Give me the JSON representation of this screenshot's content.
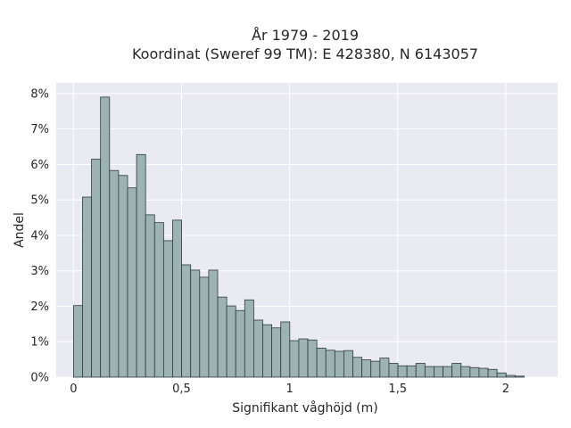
{
  "chart_data": {
    "type": "bar",
    "title_lines": [
      "År 1979 - 2019",
      "Koordinat (Sweref 99 TM): E 428380, N 6143057"
    ],
    "xlabel": "Signifikant våghöjd (m)",
    "ylabel": "Andel",
    "xlim": [
      -0.08,
      2.24
    ],
    "ylim": [
      0,
      8.3
    ],
    "x_ticks": [
      0,
      0.5,
      1,
      1.5,
      2
    ],
    "x_tick_labels": [
      "0",
      "0,5",
      "1",
      "1,5",
      "2"
    ],
    "y_ticks": [
      0,
      1,
      2,
      3,
      4,
      5,
      6,
      7,
      8
    ],
    "y_tick_labels": [
      "0%",
      "1%",
      "2%",
      "3%",
      "4%",
      "5%",
      "6%",
      "7%",
      "8%"
    ],
    "bin_width": 0.0417,
    "bin_start": 0,
    "values": [
      2.02,
      5.08,
      6.15,
      7.9,
      5.83,
      5.69,
      5.34,
      6.28,
      4.58,
      4.36,
      3.85,
      4.43,
      3.17,
      3.02,
      2.82,
      3.02,
      2.26,
      2.01,
      1.88,
      2.18,
      1.61,
      1.48,
      1.39,
      1.56,
      1.03,
      1.08,
      1.05,
      0.82,
      0.76,
      0.73,
      0.75,
      0.56,
      0.49,
      0.45,
      0.54,
      0.39,
      0.32,
      0.32,
      0.39,
      0.3,
      0.3,
      0.3,
      0.39,
      0.3,
      0.27,
      0.25,
      0.22,
      0.12,
      0.05,
      0.03
    ],
    "grid": true,
    "colors": {
      "bar_fill": "#9db3b3",
      "bar_edge": "#2e3b3b",
      "plot_bg": "#eaeaf2",
      "grid": "#ffffff"
    }
  }
}
